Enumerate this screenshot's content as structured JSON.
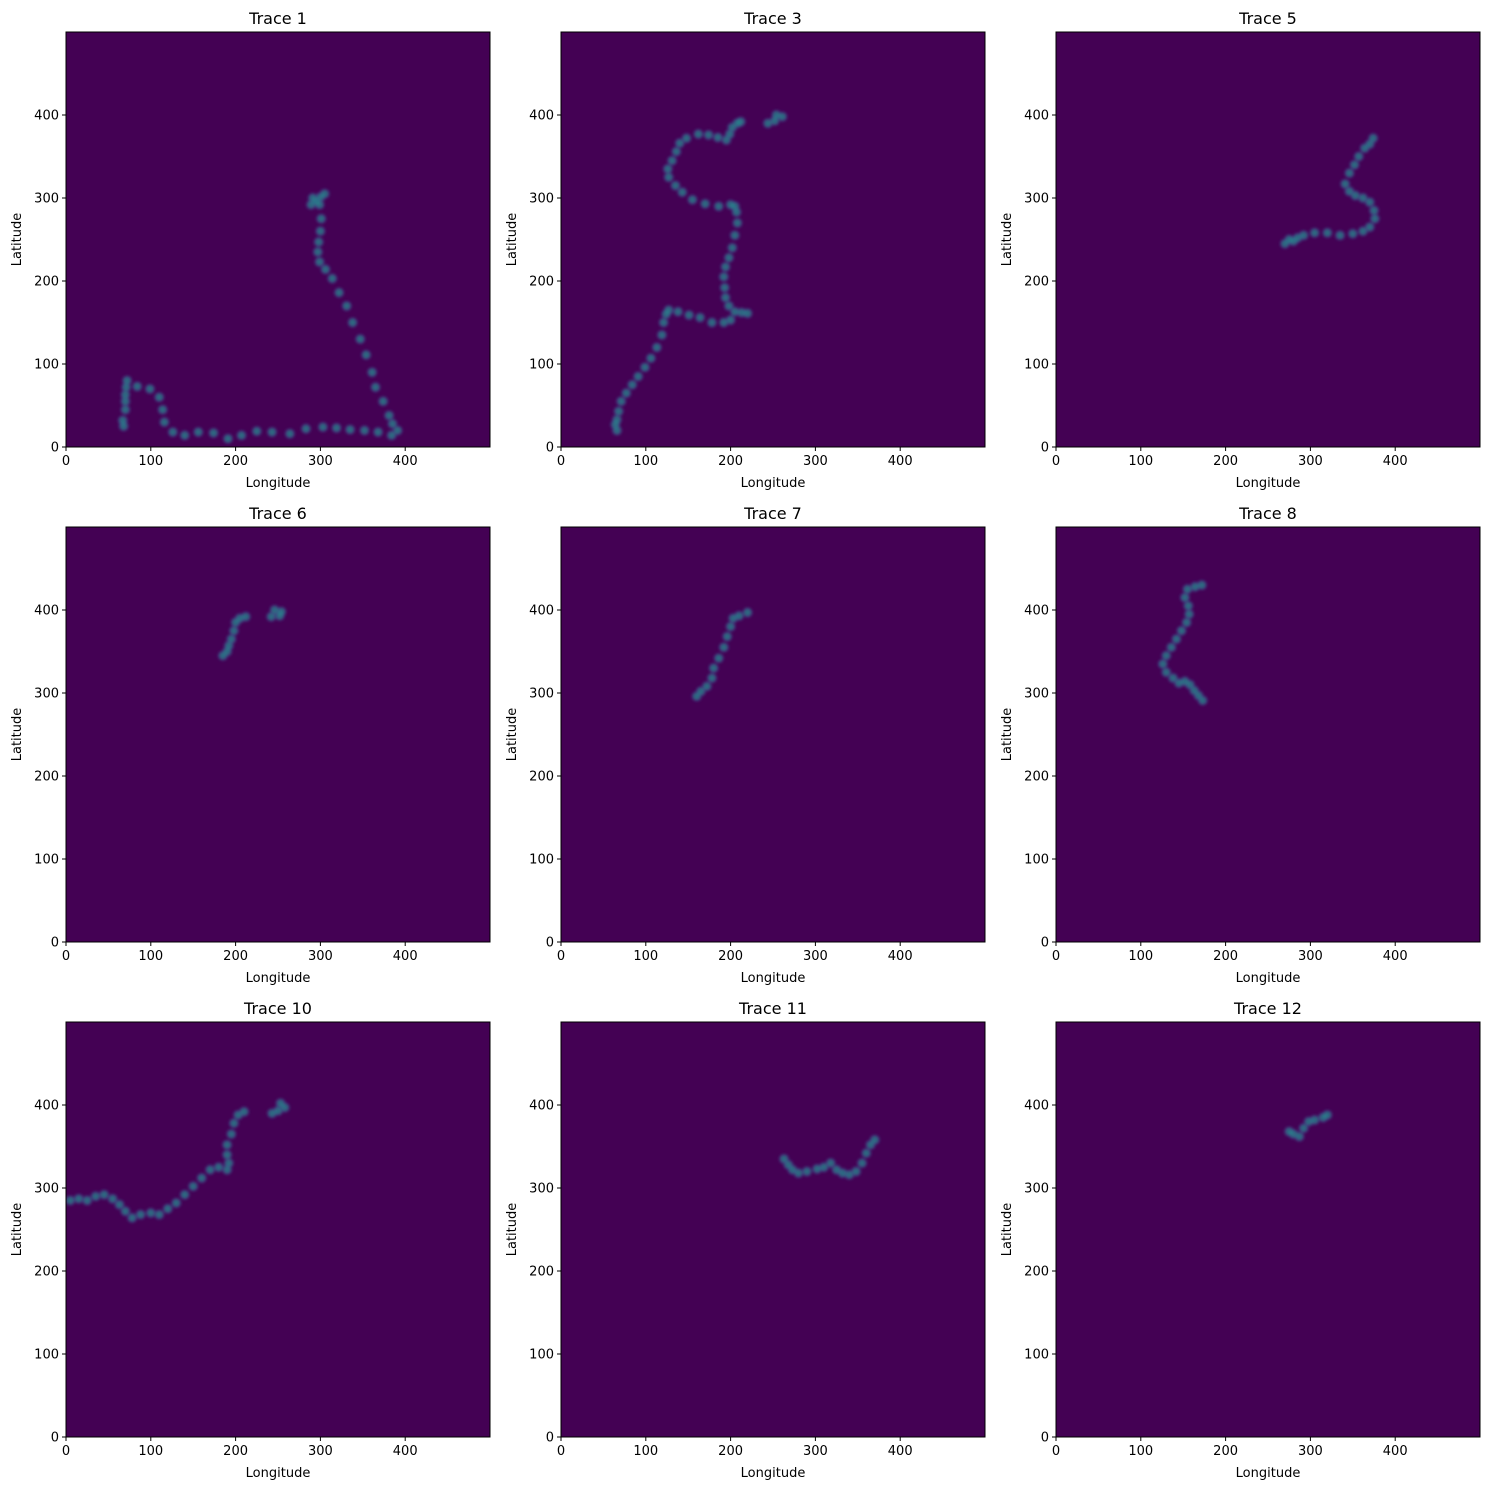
{
  "chart_data": [
    {
      "type": "heatmap",
      "title": "Trace 1",
      "xlabel": "Longitude",
      "ylabel": "Latitude",
      "xlim": [
        0,
        500
      ],
      "ylim": [
        0,
        500
      ],
      "xticks": [
        "0",
        "100",
        "200",
        "300",
        "400"
      ],
      "yticks": [
        "0",
        "100",
        "200",
        "300",
        "400"
      ],
      "colormap": "viridis",
      "points": [
        [
          68,
          25
        ],
        [
          67,
          32
        ],
        [
          70,
          45
        ],
        [
          70,
          55
        ],
        [
          70,
          63
        ],
        [
          71,
          72
        ],
        [
          72,
          80
        ],
        [
          84,
          73
        ],
        [
          99,
          70
        ],
        [
          110,
          60
        ],
        [
          114,
          45
        ],
        [
          116,
          30
        ],
        [
          126,
          18
        ],
        [
          140,
          14
        ],
        [
          156,
          18
        ],
        [
          174,
          17
        ],
        [
          191,
          10
        ],
        [
          207,
          14
        ],
        [
          225,
          19
        ],
        [
          243,
          18
        ],
        [
          264,
          16
        ],
        [
          283,
          22
        ],
        [
          303,
          24
        ],
        [
          319,
          23
        ],
        [
          335,
          21
        ],
        [
          352,
          20
        ],
        [
          368,
          18
        ],
        [
          384,
          14
        ],
        [
          391,
          20
        ],
        [
          385,
          28
        ],
        [
          381,
          38
        ],
        [
          374,
          55
        ],
        [
          365,
          72
        ],
        [
          361,
          90
        ],
        [
          354,
          111
        ],
        [
          347,
          130
        ],
        [
          338,
          150
        ],
        [
          331,
          170
        ],
        [
          322,
          186
        ],
        [
          314,
          203
        ],
        [
          306,
          214
        ],
        [
          299,
          223
        ],
        [
          297,
          235
        ],
        [
          298,
          247
        ],
        [
          300,
          260
        ],
        [
          301,
          275
        ],
        [
          299,
          292
        ],
        [
          295,
          296
        ],
        [
          289,
          292
        ],
        [
          291,
          300
        ],
        [
          300,
          301
        ],
        [
          305,
          305
        ]
      ]
    },
    {
      "type": "heatmap",
      "title": "Trace 3",
      "xlabel": "Longitude",
      "ylabel": "Latitude",
      "xlim": [
        0,
        500
      ],
      "ylim": [
        0,
        500
      ],
      "xticks": [
        "0",
        "100",
        "200",
        "300",
        "400"
      ],
      "yticks": [
        "0",
        "100",
        "200",
        "300",
        "400"
      ],
      "colormap": "viridis",
      "points": [
        [
          66,
          20
        ],
        [
          64,
          27
        ],
        [
          66,
          33
        ],
        [
          68,
          43
        ],
        [
          71,
          55
        ],
        [
          77,
          65
        ],
        [
          84,
          75
        ],
        [
          91,
          85
        ],
        [
          99,
          96
        ],
        [
          106,
          107
        ],
        [
          113,
          120
        ],
        [
          119,
          135
        ],
        [
          121,
          150
        ],
        [
          124,
          160
        ],
        [
          127,
          165
        ],
        [
          138,
          163
        ],
        [
          151,
          159
        ],
        [
          164,
          156
        ],
        [
          178,
          150
        ],
        [
          192,
          150
        ],
        [
          200,
          153
        ],
        [
          205,
          163
        ],
        [
          213,
          162
        ],
        [
          220,
          161
        ],
        [
          198,
          170
        ],
        [
          194,
          180
        ],
        [
          193,
          192
        ],
        [
          192,
          205
        ],
        [
          194,
          217
        ],
        [
          198,
          228
        ],
        [
          202,
          240
        ],
        [
          205,
          255
        ],
        [
          208,
          270
        ],
        [
          207,
          283
        ],
        [
          205,
          290
        ],
        [
          200,
          292
        ],
        [
          186,
          290
        ],
        [
          170,
          293
        ],
        [
          155,
          298
        ],
        [
          143,
          307
        ],
        [
          135,
          315
        ],
        [
          127,
          325
        ],
        [
          126,
          335
        ],
        [
          131,
          345
        ],
        [
          136,
          356
        ],
        [
          140,
          366
        ],
        [
          148,
          372
        ],
        [
          162,
          377
        ],
        [
          174,
          376
        ],
        [
          185,
          373
        ],
        [
          195,
          370
        ],
        [
          199,
          377
        ],
        [
          202,
          385
        ],
        [
          208,
          390
        ],
        [
          212,
          392
        ],
        [
          244,
          390
        ],
        [
          252,
          393
        ],
        [
          254,
          400
        ],
        [
          261,
          398
        ]
      ]
    },
    {
      "type": "heatmap",
      "title": "Trace 5",
      "xlabel": "Longitude",
      "ylabel": "Latitude",
      "xlim": [
        0,
        500
      ],
      "ylim": [
        0,
        500
      ],
      "xticks": [
        "0",
        "100",
        "200",
        "300",
        "400"
      ],
      "yticks": [
        "0",
        "100",
        "200",
        "300",
        "400"
      ],
      "colormap": "viridis",
      "points": [
        [
          270,
          245
        ],
        [
          275,
          250
        ],
        [
          280,
          248
        ],
        [
          285,
          252
        ],
        [
          292,
          255
        ],
        [
          305,
          258
        ],
        [
          320,
          258
        ],
        [
          335,
          255
        ],
        [
          350,
          257
        ],
        [
          362,
          260
        ],
        [
          370,
          265
        ],
        [
          376,
          275
        ],
        [
          375,
          285
        ],
        [
          370,
          295
        ],
        [
          362,
          300
        ],
        [
          353,
          303
        ],
        [
          346,
          308
        ],
        [
          341,
          317
        ],
        [
          346,
          330
        ],
        [
          352,
          340
        ],
        [
          357,
          350
        ],
        [
          364,
          360
        ],
        [
          370,
          365
        ],
        [
          374,
          372
        ]
      ]
    },
    {
      "type": "heatmap",
      "title": "Trace 6",
      "xlabel": "Longitude",
      "ylabel": "Latitude",
      "xlim": [
        0,
        500
      ],
      "ylim": [
        0,
        500
      ],
      "xticks": [
        "0",
        "100",
        "200",
        "300",
        "400"
      ],
      "yticks": [
        "0",
        "100",
        "200",
        "300",
        "400"
      ],
      "colormap": "viridis",
      "points": [
        [
          185,
          345
        ],
        [
          190,
          350
        ],
        [
          192,
          357
        ],
        [
          195,
          365
        ],
        [
          198,
          375
        ],
        [
          200,
          385
        ],
        [
          205,
          390
        ],
        [
          212,
          392
        ],
        [
          242,
          392
        ],
        [
          246,
          400
        ],
        [
          252,
          393
        ],
        [
          254,
          398
        ]
      ]
    },
    {
      "type": "heatmap",
      "title": "Trace 7",
      "xlabel": "Longitude",
      "ylabel": "Latitude",
      "xlim": [
        0,
        500
      ],
      "ylim": [
        0,
        500
      ],
      "xticks": [
        "0",
        "100",
        "200",
        "300",
        "400"
      ],
      "yticks": [
        "0",
        "100",
        "200",
        "300",
        "400"
      ],
      "colormap": "viridis",
      "points": [
        [
          160,
          296
        ],
        [
          165,
          302
        ],
        [
          172,
          308
        ],
        [
          178,
          318
        ],
        [
          180,
          330
        ],
        [
          186,
          342
        ],
        [
          192,
          355
        ],
        [
          196,
          368
        ],
        [
          200,
          380
        ],
        [
          203,
          390
        ],
        [
          210,
          393
        ],
        [
          220,
          397
        ]
      ]
    },
    {
      "type": "heatmap",
      "title": "Trace 8",
      "xlabel": "Longitude",
      "ylabel": "Latitude",
      "xlim": [
        0,
        500
      ],
      "ylim": [
        0,
        500
      ],
      "xticks": [
        "0",
        "100",
        "200",
        "300",
        "400"
      ],
      "yticks": [
        "0",
        "100",
        "200",
        "300",
        "400"
      ],
      "colormap": "viridis",
      "points": [
        [
          173,
          291
        ],
        [
          168,
          297
        ],
        [
          163,
          303
        ],
        [
          158,
          310
        ],
        [
          152,
          314
        ],
        [
          145,
          312
        ],
        [
          138,
          318
        ],
        [
          130,
          325
        ],
        [
          126,
          335
        ],
        [
          130,
          345
        ],
        [
          136,
          355
        ],
        [
          142,
          365
        ],
        [
          148,
          375
        ],
        [
          154,
          385
        ],
        [
          157,
          395
        ],
        [
          156,
          405
        ],
        [
          152,
          415
        ],
        [
          155,
          425
        ],
        [
          164,
          428
        ],
        [
          172,
          430
        ]
      ]
    },
    {
      "type": "heatmap",
      "title": "Trace 10",
      "xlabel": "Longitude",
      "ylabel": "Latitude",
      "xlim": [
        0,
        500
      ],
      "ylim": [
        0,
        500
      ],
      "xticks": [
        "0",
        "100",
        "200",
        "300",
        "400"
      ],
      "yticks": [
        "0",
        "100",
        "200",
        "300",
        "400"
      ],
      "colormap": "viridis",
      "points": [
        [
          5,
          285
        ],
        [
          15,
          287
        ],
        [
          25,
          285
        ],
        [
          35,
          290
        ],
        [
          45,
          292
        ],
        [
          55,
          287
        ],
        [
          63,
          280
        ],
        [
          70,
          272
        ],
        [
          78,
          264
        ],
        [
          88,
          268
        ],
        [
          100,
          270
        ],
        [
          110,
          268
        ],
        [
          120,
          275
        ],
        [
          130,
          282
        ],
        [
          140,
          292
        ],
        [
          150,
          302
        ],
        [
          160,
          312
        ],
        [
          170,
          322
        ],
        [
          180,
          325
        ],
        [
          190,
          322
        ],
        [
          192,
          330
        ],
        [
          190,
          340
        ],
        [
          190,
          352
        ],
        [
          195,
          365
        ],
        [
          198,
          378
        ],
        [
          203,
          388
        ],
        [
          210,
          392
        ],
        [
          243,
          390
        ],
        [
          250,
          393
        ],
        [
          253,
          402
        ],
        [
          258,
          397
        ]
      ]
    },
    {
      "type": "heatmap",
      "title": "Trace 11",
      "xlabel": "Longitude",
      "ylabel": "Latitude",
      "xlim": [
        0,
        500
      ],
      "ylim": [
        0,
        500
      ],
      "xticks": [
        "0",
        "100",
        "200",
        "300",
        "400"
      ],
      "yticks": [
        "0",
        "100",
        "200",
        "300",
        "400"
      ],
      "colormap": "viridis",
      "points": [
        [
          263,
          335
        ],
        [
          268,
          328
        ],
        [
          273,
          322
        ],
        [
          280,
          318
        ],
        [
          290,
          320
        ],
        [
          302,
          323
        ],
        [
          310,
          325
        ],
        [
          318,
          330
        ],
        [
          325,
          322
        ],
        [
          332,
          318
        ],
        [
          340,
          316
        ],
        [
          348,
          320
        ],
        [
          355,
          330
        ],
        [
          360,
          342
        ],
        [
          365,
          352
        ],
        [
          370,
          358
        ]
      ]
    },
    {
      "type": "heatmap",
      "title": "Trace 12",
      "xlabel": "Longitude",
      "ylabel": "Latitude",
      "xlim": [
        0,
        500
      ],
      "ylim": [
        0,
        500
      ],
      "xticks": [
        "0",
        "100",
        "200",
        "300",
        "400"
      ],
      "yticks": [
        "0",
        "100",
        "200",
        "300",
        "400"
      ],
      "colormap": "viridis",
      "points": [
        [
          275,
          368
        ],
        [
          280,
          365
        ],
        [
          287,
          362
        ],
        [
          292,
          372
        ],
        [
          298,
          380
        ],
        [
          305,
          382
        ],
        [
          315,
          385
        ],
        [
          320,
          388
        ]
      ]
    }
  ]
}
